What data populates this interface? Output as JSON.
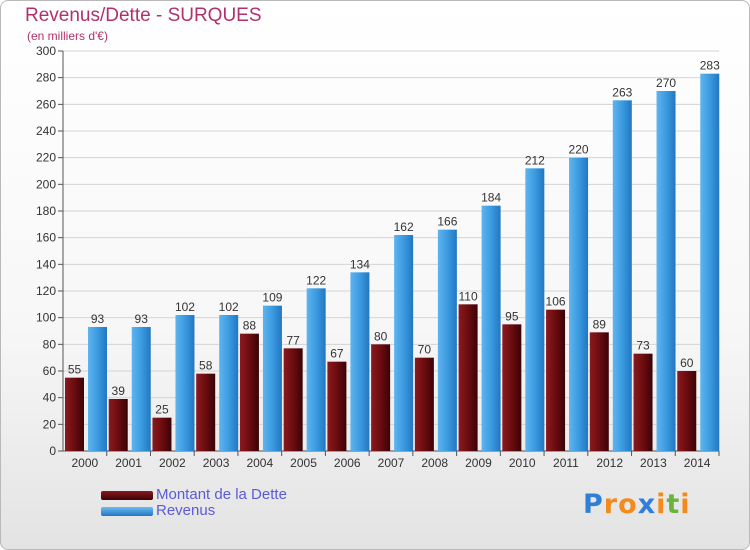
{
  "header": {
    "title": "Revenus/Dette - SURQUES",
    "unit": "(en milliers d'€)"
  },
  "chart_data": {
    "type": "bar",
    "categories": [
      "2000",
      "2001",
      "2002",
      "2003",
      "2004",
      "2005",
      "2006",
      "2007",
      "2008",
      "2009",
      "2010",
      "2011",
      "2012",
      "2013",
      "2014"
    ],
    "series": [
      {
        "name": "Montant de la Dette",
        "color": "#6b0c10",
        "values": [
          55,
          39,
          25,
          58,
          88,
          77,
          67,
          80,
          70,
          110,
          95,
          106,
          89,
          73,
          60
        ]
      },
      {
        "name": "Revenus",
        "color": "#3b9be0",
        "values": [
          93,
          93,
          102,
          102,
          109,
          122,
          134,
          162,
          166,
          184,
          212,
          220,
          263,
          270,
          283
        ]
      }
    ],
    "ylim": [
      0,
      300
    ],
    "ytick_step": 20,
    "grid": true,
    "legend": "bottom-left"
  },
  "logo": {
    "letters": [
      {
        "char": "P",
        "color": "#2f7fd8"
      },
      {
        "char": "r",
        "color": "#f28a1c"
      },
      {
        "char": "o",
        "color": "#f28a1c"
      },
      {
        "char": "x",
        "color": "#2f7fd8"
      },
      {
        "char": "i",
        "color": "#f28a1c"
      },
      {
        "char": "t",
        "color": "#6ab43e"
      },
      {
        "char": "i",
        "color": "#f28a1c"
      }
    ]
  }
}
